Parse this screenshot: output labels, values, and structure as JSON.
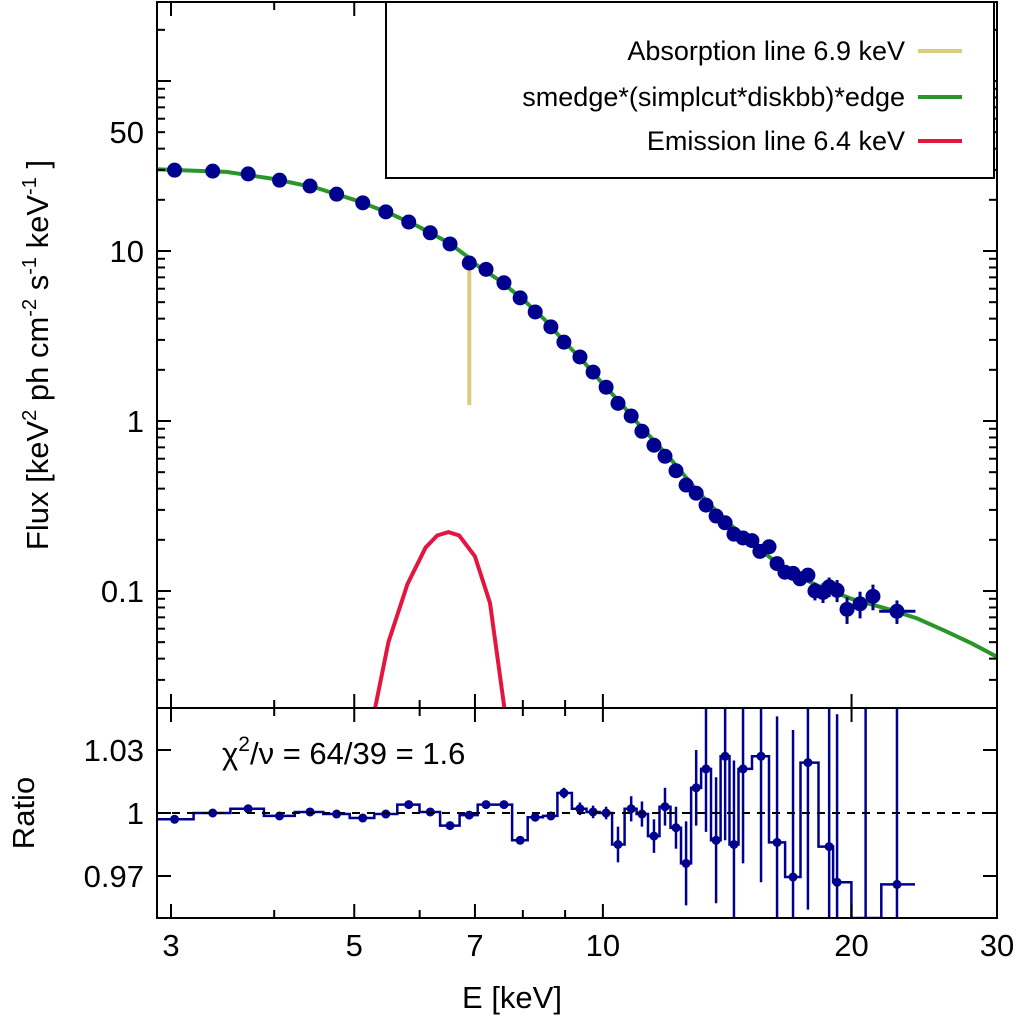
{
  "chart_data": [
    {
      "type": "line",
      "panel": "spectrum",
      "xscale": "log",
      "yscale": "log",
      "xlim": [
        2.88,
        30
      ],
      "ylim": [
        0.0205,
        290
      ],
      "xlabel": "E [keV]",
      "ylabel_parts": [
        "Flux [keV",
        "2",
        " ph cm",
        "-2",
        " s",
        "-1",
        " keV",
        "-1",
        " ]"
      ],
      "x_ticks": [
        3,
        5,
        7,
        10,
        20,
        30
      ],
      "x_tick_labels": [
        "3",
        "5",
        "7",
        "10",
        "20",
        "30"
      ],
      "y_ticks": [
        50,
        10,
        1,
        0.1
      ],
      "y_tick_labels": [
        "50",
        "10",
        "1",
        "0.1"
      ],
      "legend_position": "top-right",
      "colors": {
        "data": "#00008f",
        "model": "#2a962a",
        "emission": "#e3163f",
        "absorption": "#dfc97c"
      },
      "series": [
        {
          "name": "Absorption line 6.9 keV",
          "kind": "line",
          "points": [
            [
              6.89,
              8.5
            ],
            [
              6.89,
              1.24
            ]
          ]
        },
        {
          "name": "smedge*(simplcut*diskbb)*edge",
          "kind": "line",
          "points": [
            [
              2.88,
              30.3
            ],
            [
              3,
              30
            ],
            [
              3.5,
              29.2
            ],
            [
              4,
              26.5
            ],
            [
              4.5,
              23.5
            ],
            [
              5,
              20
            ],
            [
              5.5,
              16.8
            ],
            [
              6,
              13.8
            ],
            [
              6.5,
              11.2
            ],
            [
              6.85,
              9.3
            ],
            [
              7,
              8.4
            ],
            [
              7.5,
              6.7
            ],
            [
              8,
              5.2
            ],
            [
              8.5,
              3.95
            ],
            [
              9,
              2.9
            ],
            [
              9.5,
              2.2
            ],
            [
              10,
              1.65
            ],
            [
              10.5,
              1.28
            ],
            [
              11,
              0.98
            ],
            [
              12,
              0.62
            ],
            [
              13,
              0.39
            ],
            [
              14,
              0.265
            ],
            [
              15,
              0.2
            ],
            [
              16,
              0.155
            ],
            [
              17,
              0.128
            ],
            [
              18,
              0.11
            ],
            [
              20,
              0.09
            ],
            [
              22,
              0.079
            ],
            [
              24,
              0.069
            ],
            [
              26,
              0.058
            ],
            [
              28,
              0.049
            ],
            [
              30,
              0.041
            ]
          ]
        },
        {
          "name": "Emission line 6.4 keV",
          "kind": "line",
          "points": [
            [
              5.3,
              0.0205
            ],
            [
              5.5,
              0.05
            ],
            [
              5.8,
              0.11
            ],
            [
              6.1,
              0.18
            ],
            [
              6.3,
              0.212
            ],
            [
              6.5,
              0.222
            ],
            [
              6.7,
              0.212
            ],
            [
              7.0,
              0.16
            ],
            [
              7.3,
              0.085
            ],
            [
              7.6,
              0.0205
            ]
          ]
        },
        {
          "kind": "points",
          "x": [
            3.03,
            3.37,
            3.72,
            4.06,
            4.42,
            4.76,
            5.12,
            5.46,
            5.82,
            6.18,
            6.53,
            6.89,
            7.22,
            7.59,
            7.94,
            8.28,
            8.65,
            8.97,
            9.38,
            9.73,
            10.09,
            10.43,
            10.82,
            11.15,
            11.53,
            11.89,
            12.26,
            12.61,
            12.97,
            13.33,
            13.71,
            14.06,
            14.41,
            14.78,
            15.15,
            15.49,
            15.89,
            16.25,
            16.61,
            16.99,
            17.32,
            17.71,
            18.06,
            18.47,
            18.79,
            19.21,
            19.75,
            20.48,
            21.23,
            22.7
          ],
          "y": [
            29.9,
            29.5,
            28.4,
            26.1,
            24.1,
            21.6,
            19.2,
            17.0,
            14.8,
            12.8,
            11.0,
            8.5,
            7.8,
            6.5,
            5.3,
            4.38,
            3.58,
            2.91,
            2.38,
            1.94,
            1.58,
            1.27,
            1.07,
            0.87,
            0.72,
            0.62,
            0.51,
            0.42,
            0.376,
            0.32,
            0.276,
            0.252,
            0.216,
            0.205,
            0.198,
            0.171,
            0.182,
            0.145,
            0.129,
            0.127,
            0.118,
            0.124,
            0.1,
            0.098,
            0.106,
            0.101,
            0.078,
            0.084,
            0.093,
            0.076
          ],
          "yerr": [
            0.3,
            0.3,
            0.3,
            0.3,
            0.3,
            0.3,
            0.2,
            0.2,
            0.2,
            0.15,
            0.15,
            0.1,
            0.1,
            0.08,
            0.06,
            0.05,
            0.04,
            0.03,
            0.03,
            0.02,
            0.02,
            0.015,
            0.013,
            0.01,
            0.009,
            0.008,
            0.007,
            0.006,
            0.006,
            0.005,
            0.005,
            0.005,
            0.005,
            0.005,
            0.005,
            0.005,
            0.006,
            0.006,
            0.007,
            0.008,
            0.01,
            0.01,
            0.012,
            0.013,
            0.014,
            0.015,
            0.014,
            0.015,
            0.016,
            0.012
          ],
          "xerr_last": [
            21.6,
            23.9
          ]
        }
      ]
    },
    {
      "type": "line",
      "panel": "ratio",
      "xscale": "log",
      "xlim": [
        2.88,
        30
      ],
      "ylim": [
        0.95,
        1.05
      ],
      "ylabel": "Ratio",
      "y_ticks": [
        1.03,
        1,
        0.97
      ],
      "y_tick_labels": [
        "1.03",
        "1",
        "0.97"
      ],
      "reference_line": 1,
      "annotation_parts": [
        "χ",
        "2",
        "/ν = 64/39 = 1.6"
      ],
      "x": [
        3.03,
        3.37,
        3.72,
        4.06,
        4.42,
        4.76,
        5.12,
        5.46,
        5.82,
        6.18,
        6.53,
        6.89,
        7.22,
        7.59,
        7.94,
        8.28,
        8.65,
        8.97,
        9.38,
        9.73,
        10.09,
        10.43,
        10.82,
        11.15,
        11.53,
        11.89,
        12.26,
        12.61,
        12.97,
        13.33,
        13.71,
        14.06,
        14.41,
        14.78,
        15.54,
        16.25,
        16.99,
        17.71,
        18.79,
        19.21,
        20.8,
        22.7
      ],
      "y": [
        0.997,
        1.0,
        1.002,
        0.9986,
        1.0005,
        0.9995,
        0.9976,
        0.9995,
        1.004,
        1.0005,
        0.994,
        0.999,
        1.004,
        1.004,
        0.987,
        0.998,
        0.9986,
        1.0095,
        1.002,
        1.0005,
        1.0,
        0.985,
        1.002,
        0.9995,
        0.989,
        1.003,
        0.993,
        0.976,
        1.012,
        1.021,
        0.987,
        1.027,
        0.985,
        1.021,
        1.027,
        0.986,
        0.9695,
        1.024,
        0.984,
        0.967,
        0.93,
        0.966
      ],
      "yerr": [
        0.0006,
        0.0006,
        0.0006,
        0.0006,
        0.0006,
        0.0006,
        0.0006,
        0.0006,
        0.0008,
        0.0008,
        0.001,
        0.001,
        0.0015,
        0.0015,
        0.002,
        0.002,
        0.002,
        0.0025,
        0.003,
        0.003,
        0.003,
        0.0085,
        0.006,
        0.006,
        0.008,
        0.009,
        0.01,
        0.02,
        0.018,
        0.03,
        0.03,
        0.04,
        0.04,
        0.045,
        0.06,
        0.06,
        0.07,
        0.07,
        0.08,
        0.08,
        0.2,
        0.1
      ]
    }
  ],
  "legend": [
    {
      "label": "Absorption line 6.9 keV",
      "color": "#dfc97c"
    },
    {
      "label": "smedge*(simplcut*diskbb)*edge",
      "color": "#2a962a"
    },
    {
      "label": "Emission line 6.4 keV",
      "color": "#e3163f"
    }
  ]
}
